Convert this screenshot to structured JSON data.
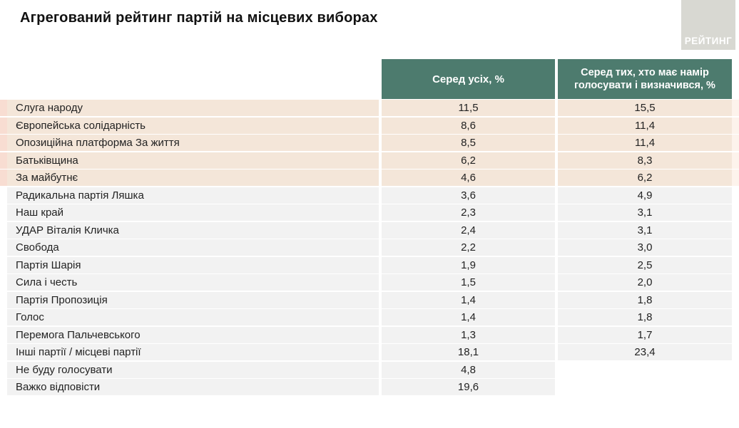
{
  "title": "Агрегований рейтинг партій на місцевих виборах",
  "logo": {
    "text": "РЕЙТИНГ"
  },
  "colors": {
    "header_bg": "#4d7b6e",
    "highlight_row": "#f4e6d9",
    "highlight_left_strip": "#f8ddd2",
    "highlight_right_strip": "#fdf3ec",
    "normal_row": "#f2f2f2",
    "logo_bg": "#d8d8d2"
  },
  "table": {
    "columns": [
      "Серед усіх, %",
      "Серед тих, хто має намір голосувати і визначився, %"
    ],
    "rows": [
      {
        "name": "Слуга народу",
        "all": "11,5",
        "determined": "15,5",
        "highlighted": true
      },
      {
        "name": "Європейська солідарність",
        "all": "8,6",
        "determined": "11,4",
        "highlighted": true
      },
      {
        "name": "Опозиційна платформа За життя",
        "all": "8,5",
        "determined": "11,4",
        "highlighted": true
      },
      {
        "name": "Батьківщина",
        "all": "6,2",
        "determined": "8,3",
        "highlighted": true
      },
      {
        "name": "За майбутнє",
        "all": "4,6",
        "determined": "6,2",
        "highlighted": true
      },
      {
        "name": "Радикальна партія Ляшка",
        "all": "3,6",
        "determined": "4,9",
        "highlighted": false
      },
      {
        "name": "Наш край",
        "all": "2,3",
        "determined": "3,1",
        "highlighted": false
      },
      {
        "name": "УДАР Віталія Кличка",
        "all": "2,4",
        "determined": "3,1",
        "highlighted": false
      },
      {
        "name": "Свобода",
        "all": "2,2",
        "determined": "3,0",
        "highlighted": false
      },
      {
        "name": "Партія Шарія",
        "all": "1,9",
        "determined": "2,5",
        "highlighted": false
      },
      {
        "name": "Сила і честь",
        "all": "1,5",
        "determined": "2,0",
        "highlighted": false
      },
      {
        "name": "Партія Пропозиція",
        "all": "1,4",
        "determined": "1,8",
        "highlighted": false
      },
      {
        "name": "Голос",
        "all": "1,4",
        "determined": "1,8",
        "highlighted": false
      },
      {
        "name": "Перемога Пальчевського",
        "all": "1,3",
        "determined": "1,7",
        "highlighted": false
      },
      {
        "name": "Інші партії / місцеві партії",
        "all": "18,1",
        "determined": "23,4",
        "highlighted": false
      },
      {
        "name": "Не буду голосувати",
        "all": "4,8",
        "determined": null,
        "highlighted": false
      },
      {
        "name": "Важко відповісти",
        "all": "19,6",
        "determined": null,
        "highlighted": false
      }
    ]
  },
  "chart_data": {
    "type": "table",
    "title": "Агрегований рейтинг партій на місцевих виборах",
    "categories": [
      "Слуга народу",
      "Європейська солідарність",
      "Опозиційна платформа За життя",
      "Батьківщина",
      "За майбутнє",
      "Радикальна партія Ляшка",
      "Наш край",
      "УДАР Віталія Кличка",
      "Свобода",
      "Партія Шарія",
      "Сила і честь",
      "Партія Пропозиція",
      "Голос",
      "Перемога Пальчевського",
      "Інші партії / місцеві партії",
      "Не буду голосувати",
      "Важко відповісти"
    ],
    "series": [
      {
        "name": "Серед усіх, %",
        "values": [
          11.5,
          8.6,
          8.5,
          6.2,
          4.6,
          3.6,
          2.3,
          2.4,
          2.2,
          1.9,
          1.5,
          1.4,
          1.4,
          1.3,
          18.1,
          4.8,
          19.6
        ]
      },
      {
        "name": "Серед тих, хто має намір голосувати і визначився, %",
        "values": [
          15.5,
          11.4,
          11.4,
          8.3,
          6.2,
          4.9,
          3.1,
          3.1,
          3.0,
          2.5,
          2.0,
          1.8,
          1.8,
          1.7,
          23.4,
          null,
          null
        ]
      }
    ],
    "highlighted_rows": 5
  }
}
